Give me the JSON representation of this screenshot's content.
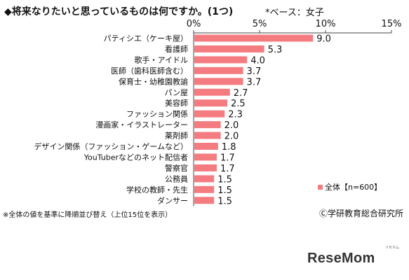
{
  "header": {
    "title": "◆将来なりたいと思っているものは何ですか。(1つ)",
    "subtitle": "*ベース：女子"
  },
  "chart_data": {
    "type": "bar",
    "orientation": "horizontal",
    "categories": [
      "パティシエ（ケーキ屋）",
      "看護師",
      "歌手・アイドル",
      "医師（歯科医師含む）",
      "保育士・幼稚園教諭",
      "パン屋",
      "美容師",
      "ファッション関係",
      "漫画家・イラストレーター",
      "薬剤師",
      "デザイン関係（ファッション・ゲームなど）",
      "YouTuberなどのネット配信者",
      "警察官",
      "公務員",
      "学校の教師・先生",
      "ダンサー"
    ],
    "series": [
      {
        "name": "全体【n=600】",
        "values": [
          9.0,
          5.3,
          4.0,
          3.7,
          3.7,
          2.7,
          2.5,
          2.3,
          2.0,
          2.0,
          1.8,
          1.7,
          1.7,
          1.5,
          1.5,
          1.5
        ],
        "value_labels": [
          "9.0",
          "5.3",
          "4.0",
          "3.7",
          "3.7",
          "2.7",
          "2.5",
          "2.3",
          "2.0",
          "2.0",
          "1.8",
          "1.7",
          "1.7",
          "1.5",
          "1.5",
          "1.5"
        ]
      }
    ],
    "xlim": [
      0,
      15
    ],
    "xticks": [
      "0%",
      "5%",
      "10%",
      "15%"
    ],
    "xtick_values": [
      0,
      5,
      10,
      15
    ],
    "grid": false,
    "legend_position": "bottom-right",
    "bar_color": "#f47c80"
  },
  "footer": {
    "note": "※全体の値を基準に降順並び替え（上位15位を表示）",
    "source": "Ⓒ学研教育総合研究所"
  },
  "logo": {
    "text": "ReseMom",
    "ruby": "リセマム"
  }
}
